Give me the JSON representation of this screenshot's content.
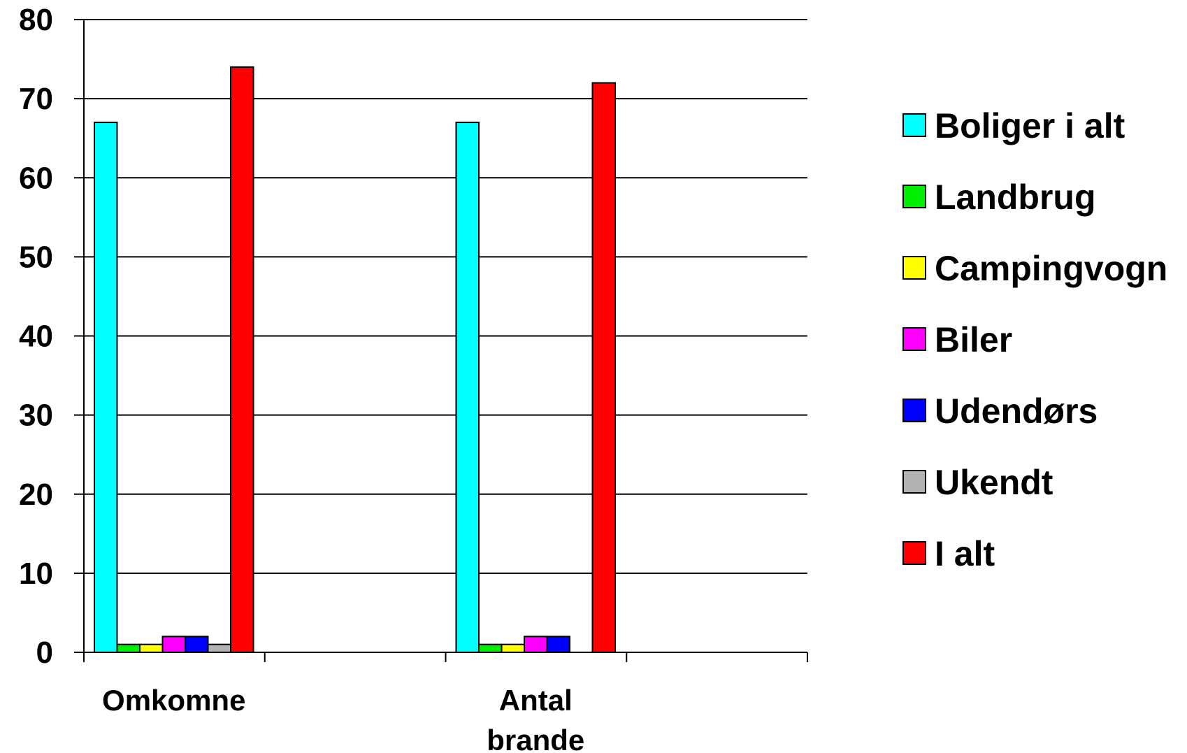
{
  "chart_data": {
    "type": "bar",
    "categories": [
      "Omkomne",
      "Antal brande"
    ],
    "category_lines": [
      [
        "Omkomne"
      ],
      [
        "Antal",
        "brande"
      ]
    ],
    "series": [
      {
        "name": "Boliger i alt",
        "color": "#00FFFF",
        "values": [
          67,
          67
        ]
      },
      {
        "name": "Landbrug",
        "color": "#00EE00",
        "values": [
          1,
          1
        ]
      },
      {
        "name": "Campingvogn",
        "color": "#FFFF00",
        "values": [
          1,
          1
        ]
      },
      {
        "name": "Biler",
        "color": "#FF00FF",
        "values": [
          2,
          2
        ]
      },
      {
        "name": "Udendørs",
        "color": "#0000FF",
        "values": [
          2,
          2
        ]
      },
      {
        "name": "Ukendt",
        "color": "#B2B2B2",
        "values": [
          1,
          0
        ]
      },
      {
        "name": "I alt",
        "color": "#FF0000",
        "values": [
          74,
          72
        ]
      }
    ],
    "ylim": [
      0,
      80
    ],
    "yticks": [
      0,
      10,
      20,
      30,
      40,
      50,
      60,
      70,
      80
    ],
    "ytick_labels": [
      "0",
      "10",
      "20",
      "30",
      "40",
      "50",
      "60",
      "70",
      "80"
    ],
    "grid": true,
    "legend_position": "right",
    "title": "",
    "xlabel": "",
    "ylabel": ""
  }
}
